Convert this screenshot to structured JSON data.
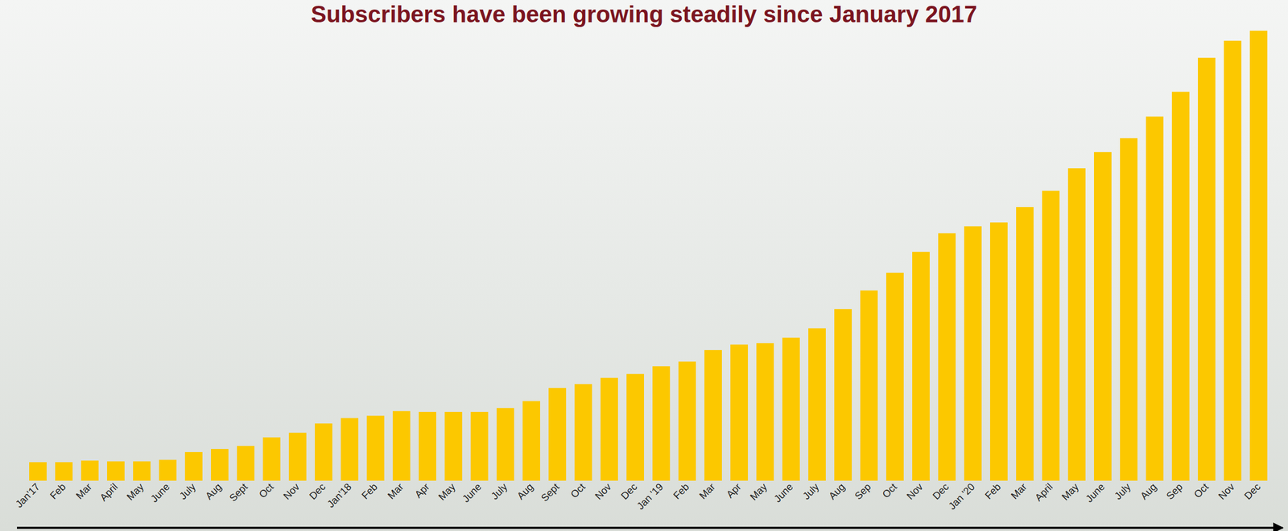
{
  "chart_data": {
    "type": "bar",
    "title": "Subscribers have been growing steadily since January 2017",
    "categories": [
      "Jan'17",
      "Feb",
      "Mar",
      "April",
      "May",
      "June",
      "July",
      "Aug",
      "Sept",
      "Oct",
      "Nov",
      "Dec",
      "Jan'18",
      "Feb",
      "Mar",
      "Apr",
      "May",
      "June",
      "July",
      "Aug",
      "Sept",
      "Oct",
      "Nov",
      "Dec",
      "Jan '19",
      "Feb",
      "Mar",
      "Apr",
      "May",
      "June",
      "July",
      "Aug",
      "Sep",
      "Oct",
      "Nov",
      "Dec",
      "Jan '20",
      "Feb",
      "Mar",
      "April",
      "May",
      "June",
      "July",
      "Aug",
      "Sep",
      "Oct",
      "Nov",
      "Dec"
    ],
    "values": [
      24,
      24,
      26,
      25,
      25,
      27,
      37,
      41,
      45,
      56,
      62,
      74,
      81,
      84,
      90,
      89,
      89,
      89,
      94,
      103,
      120,
      125,
      133,
      138,
      148,
      154,
      169,
      176,
      178,
      185,
      197,
      222,
      246,
      269,
      296,
      320,
      329,
      334,
      354,
      375,
      404,
      425,
      443,
      471,
      503,
      547,
      569,
      582
    ],
    "color": "#fcc800",
    "ylim": [
      0,
      582
    ],
    "tick_labels": "x",
    "grid": false
  }
}
